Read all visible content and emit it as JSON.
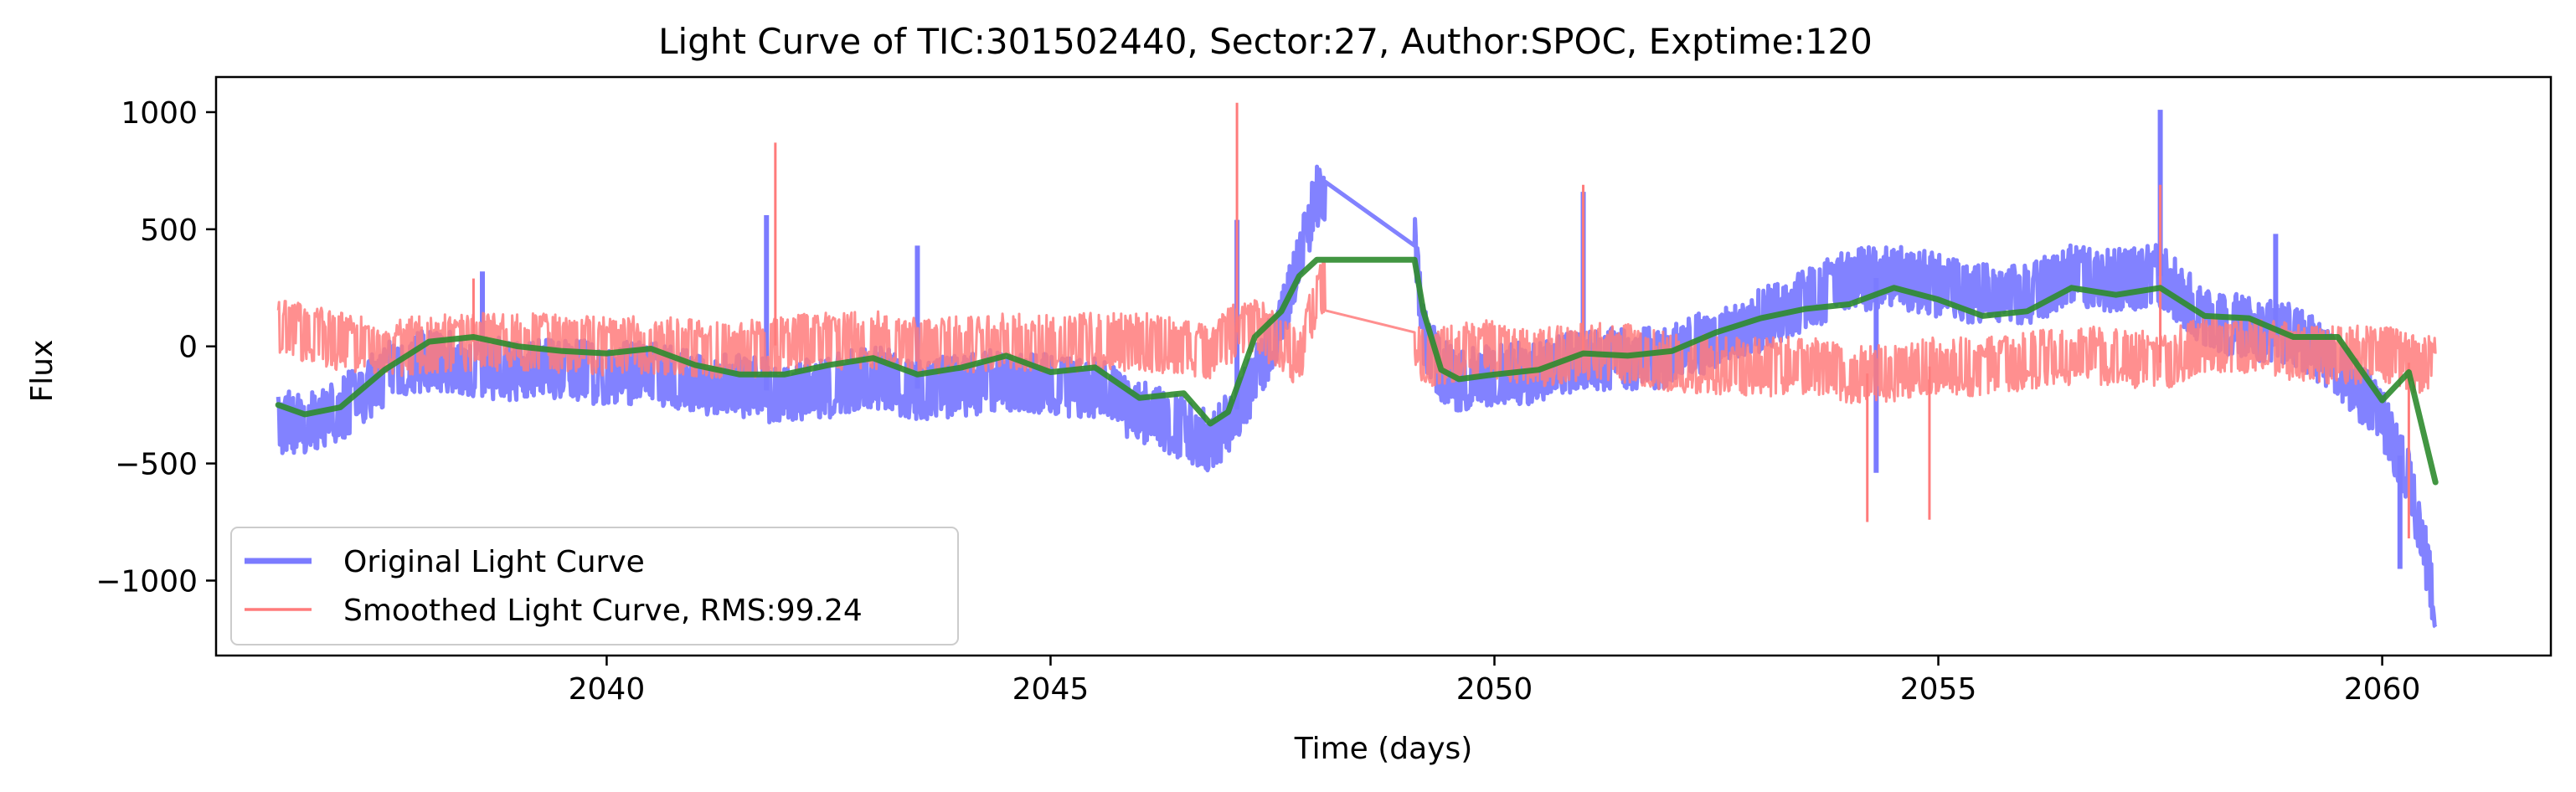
{
  "chart_data": {
    "type": "line",
    "title": "Light Curve of TIC:301502440, Sector:27, Author:SPOC, Exptime:120",
    "xlabel": "Time (days)",
    "ylabel": "Flux",
    "xlim": [
      2035.6,
      2061.9
    ],
    "ylim": [
      -1320,
      1150
    ],
    "xticks": [
      2040,
      2045,
      2050,
      2055,
      2060
    ],
    "yticks": [
      -1000,
      -500,
      0,
      500,
      1000
    ],
    "grid": false,
    "legend_position": "lower-left",
    "series": [
      {
        "name": "Original Light Curve",
        "color": "#7b7bff",
        "noise": 135,
        "x": [
          2036.3,
          2036.6,
          2037.0,
          2037.5,
          2038.0,
          2038.5,
          2039.0,
          2039.5,
          2040.0,
          2040.5,
          2041.0,
          2041.5,
          2042.0,
          2042.5,
          2043.0,
          2043.5,
          2044.0,
          2044.5,
          2045.0,
          2045.5,
          2046.0,
          2046.5,
          2046.8,
          2047.0,
          2047.3,
          2047.6,
          2047.8,
          2048.0,
          2048.1,
          2049.1,
          2049.2,
          2049.4,
          2049.6,
          2050.0,
          2050.5,
          2051.0,
          2051.5,
          2052.0,
          2052.5,
          2053.0,
          2053.5,
          2054.0,
          2054.5,
          2055.0,
          2055.5,
          2056.0,
          2056.5,
          2057.0,
          2057.5,
          2058.0,
          2058.5,
          2059.0,
          2059.5,
          2060.0,
          2060.3,
          2060.6
        ],
        "y": [
          -320,
          -330,
          -270,
          -120,
          -60,
          -80,
          -110,
          -90,
          -120,
          -110,
          -160,
          -170,
          -200,
          -170,
          -130,
          -180,
          -170,
          -140,
          -170,
          -180,
          -280,
          -350,
          -400,
          -330,
          -150,
          120,
          350,
          650,
          620,
          430,
          50,
          -100,
          -150,
          -120,
          -110,
          -50,
          -60,
          -40,
          40,
          110,
          200,
          280,
          300,
          260,
          220,
          220,
          300,
          280,
          300,
          120,
          80,
          50,
          -80,
          -300,
          -550,
          -1100
        ],
        "spikes": [
          [
            2038.6,
            320
          ],
          [
            2041.8,
            560
          ],
          [
            2043.5,
            430
          ],
          [
            2047.1,
            540
          ],
          [
            2051.0,
            660
          ],
          [
            2054.3,
            -540
          ],
          [
            2057.5,
            1010
          ],
          [
            2058.8,
            480
          ],
          [
            2060.2,
            -950
          ]
        ]
      },
      {
        "name": "Smoothed Light Curve, RMS:99.24",
        "color": "#ff7b7b",
        "noise": 125,
        "x": [
          2036.3,
          2036.6,
          2037.0,
          2037.5,
          2038.0,
          2038.5,
          2039.0,
          2039.5,
          2040.0,
          2040.5,
          2041.0,
          2041.5,
          2042.0,
          2042.5,
          2043.0,
          2043.5,
          2044.0,
          2044.5,
          2045.0,
          2045.5,
          2046.0,
          2046.5,
          2046.8,
          2047.0,
          2047.3,
          2047.6,
          2047.8,
          2048.0,
          2048.1,
          2049.1,
          2049.2,
          2049.4,
          2049.6,
          2050.0,
          2050.5,
          2051.0,
          2051.5,
          2052.0,
          2052.5,
          2053.0,
          2053.5,
          2054.0,
          2054.5,
          2055.0,
          2055.5,
          2056.0,
          2056.5,
          2057.0,
          2057.5,
          2058.0,
          2058.5,
          2059.0,
          2059.5,
          2060.0,
          2060.3,
          2060.6
        ],
        "y": [
          80,
          60,
          20,
          -10,
          10,
          20,
          20,
          10,
          0,
          10,
          -10,
          -20,
          10,
          20,
          30,
          0,
          10,
          20,
          10,
          20,
          20,
          0,
          -30,
          50,
          80,
          20,
          -60,
          230,
          250,
          60,
          -70,
          -40,
          -20,
          -10,
          -50,
          -20,
          -30,
          -70,
          -80,
          -90,
          -80,
          -120,
          -110,
          -80,
          -90,
          -60,
          -40,
          -40,
          -70,
          10,
          0,
          -20,
          -40,
          -30,
          -70,
          -80
        ],
        "spikes": [
          [
            2038.5,
            290
          ],
          [
            2041.9,
            870
          ],
          [
            2047.1,
            1040
          ],
          [
            2051.0,
            690
          ],
          [
            2054.2,
            -750
          ],
          [
            2054.9,
            -740
          ],
          [
            2057.5,
            690
          ],
          [
            2060.3,
            -820
          ]
        ]
      },
      {
        "name": "",
        "color": "#2e8b2e",
        "x": [
          2036.3,
          2036.6,
          2037.0,
          2037.5,
          2038.0,
          2038.5,
          2039.0,
          2039.5,
          2040.0,
          2040.5,
          2041.0,
          2041.5,
          2042.0,
          2042.5,
          2043.0,
          2043.5,
          2044.0,
          2044.5,
          2045.0,
          2045.5,
          2046.0,
          2046.5,
          2046.8,
          2047.0,
          2047.3,
          2047.6,
          2047.8,
          2048.0,
          2048.1,
          2049.1,
          2049.2,
          2049.4,
          2049.6,
          2050.0,
          2050.5,
          2051.0,
          2051.5,
          2052.0,
          2052.5,
          2053.0,
          2053.5,
          2054.0,
          2054.5,
          2055.0,
          2055.5,
          2056.0,
          2056.5,
          2057.0,
          2057.5,
          2058.0,
          2058.5,
          2059.0,
          2059.5,
          2060.0,
          2060.3,
          2060.6
        ],
        "y": [
          -250,
          -290,
          -260,
          -100,
          20,
          40,
          0,
          -20,
          -30,
          -10,
          -80,
          -120,
          -120,
          -80,
          -50,
          -120,
          -90,
          -40,
          -110,
          -90,
          -220,
          -200,
          -330,
          -280,
          40,
          150,
          300,
          370,
          370,
          370,
          150,
          -100,
          -140,
          -120,
          -100,
          -30,
          -40,
          -20,
          60,
          120,
          160,
          180,
          250,
          200,
          130,
          150,
          250,
          220,
          250,
          130,
          120,
          40,
          40,
          -230,
          -110,
          -580
        ],
        "opacity": 0.9
      }
    ]
  }
}
